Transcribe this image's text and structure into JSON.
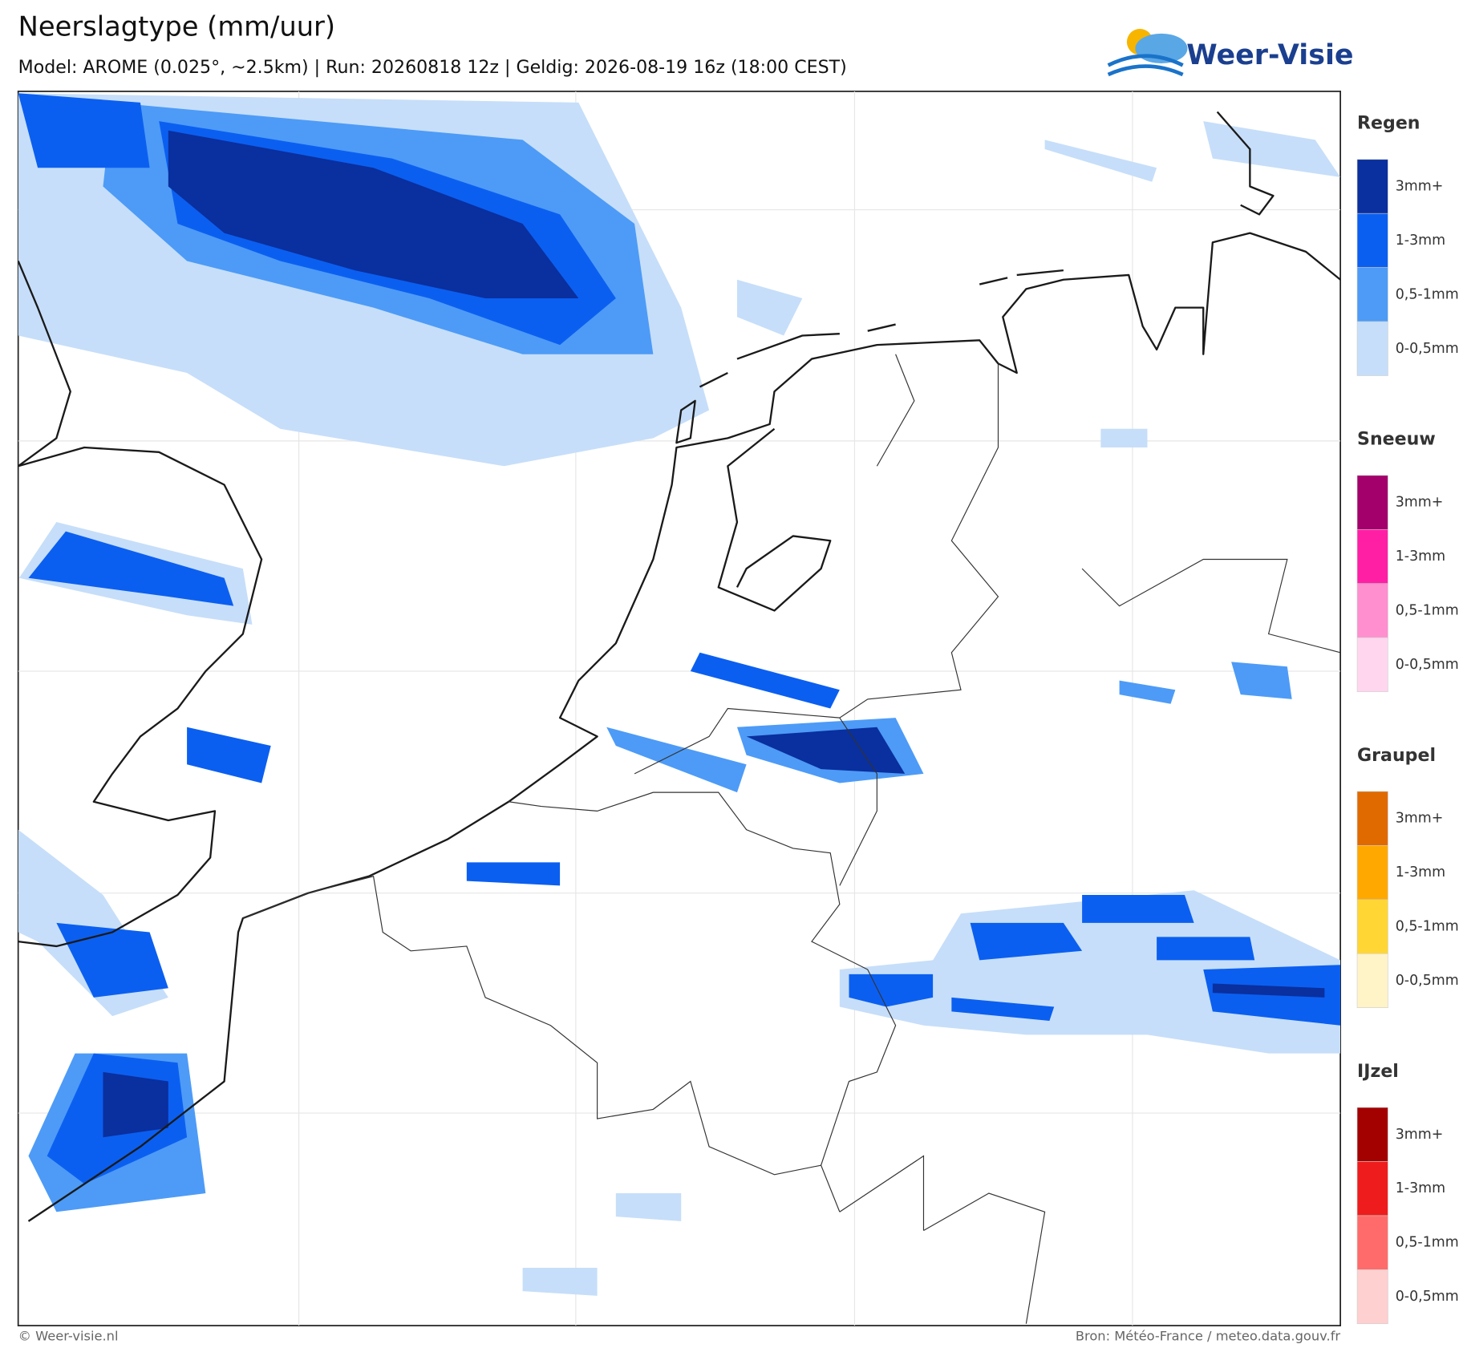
{
  "header": {
    "title": "Neerslagtype (mm/uur)",
    "subtitle": "Model: AROME (0.025°, ~2.5km)  |  Run: 20260818 12z  |  Geldig: 2026-08-19 16z (18:00 CEST)",
    "logo": "Weer-Visie"
  },
  "legend": [
    {
      "title": "Regen",
      "labels": [
        "3mm+",
        "1-3mm",
        "0,5-1mm",
        "0-0,5mm"
      ],
      "colors": [
        "#0a2f9e",
        "#0b5ff0",
        "#4d9bf7",
        "#c6def9"
      ]
    },
    {
      "title": "Sneeuw",
      "labels": [
        "3mm+",
        "1-3mm",
        "0,5-1mm",
        "0-0,5mm"
      ],
      "colors": [
        "#a3006b",
        "#ff1fa5",
        "#ff8fcf",
        "#ffd6ee"
      ]
    },
    {
      "title": "Graupel",
      "labels": [
        "3mm+",
        "1-3mm",
        "0,5-1mm",
        "0-0,5mm"
      ],
      "colors": [
        "#e06a00",
        "#ffa800",
        "#ffd633",
        "#fff3c8"
      ]
    },
    {
      "title": "IJzel",
      "labels": [
        "3mm+",
        "1-3mm",
        "0,5-1mm",
        "0-0,5mm"
      ],
      "colors": [
        "#a30000",
        "#ee1c1c",
        "#ff6b6b",
        "#ffd0d0"
      ]
    }
  ],
  "footer": {
    "left": "© Weer-visie.nl",
    "right": "Bron: Météo-France / meteo.data.gouv.fr"
  }
}
